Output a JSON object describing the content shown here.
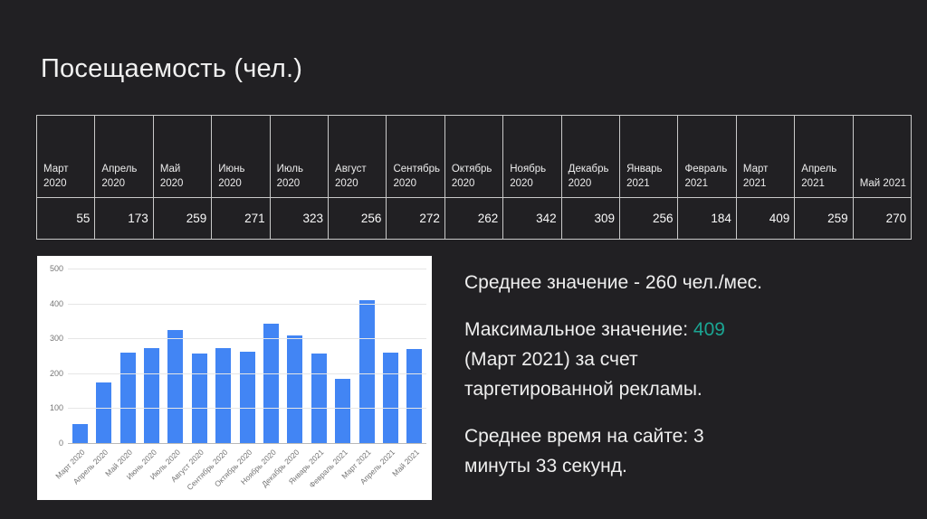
{
  "theme": {
    "background": "#212023",
    "text_primary": "#f1f1f1",
    "accent_teal": "#1ba593",
    "bar_blue": "#4285f4",
    "table_border": "#c9c9c9",
    "chart_background": "#ffffff",
    "chart_grid": "#e6e6e6",
    "chart_tick_text": "#757575"
  },
  "slide": {
    "title": "Посещаемость (чел.)"
  },
  "table": {
    "columns": [
      {
        "label_lines": [
          "Март",
          "2020"
        ],
        "value": "55"
      },
      {
        "label_lines": [
          "Апрель",
          "2020"
        ],
        "value": "173"
      },
      {
        "label_lines": [
          "Май",
          "2020"
        ],
        "value": "259"
      },
      {
        "label_lines": [
          "Июнь",
          "2020"
        ],
        "value": "271"
      },
      {
        "label_lines": [
          "Июль",
          "2020"
        ],
        "value": "323"
      },
      {
        "label_lines": [
          "Август",
          "2020"
        ],
        "value": "256"
      },
      {
        "label_lines": [
          "Сентябрь",
          "2020"
        ],
        "value": "272"
      },
      {
        "label_lines": [
          "Октябрь",
          "2020"
        ],
        "value": "262"
      },
      {
        "label_lines": [
          "Ноябрь",
          "2020"
        ],
        "value": "342"
      },
      {
        "label_lines": [
          "Декабрь",
          "2020"
        ],
        "value": "309"
      },
      {
        "label_lines": [
          "Январь",
          "2021"
        ],
        "value": "256"
      },
      {
        "label_lines": [
          "Февраль",
          "2021"
        ],
        "value": "184"
      },
      {
        "label_lines": [
          "Март",
          "2021"
        ],
        "value": "409"
      },
      {
        "label_lines": [
          "Апрель",
          "2021"
        ],
        "value": "259"
      },
      {
        "label_lines": [
          "Май 2021"
        ],
        "value": "270"
      }
    ]
  },
  "chart_data": {
    "type": "bar",
    "categories": [
      "Март 2020",
      "Апрель 2020",
      "Май 2020",
      "Июнь 2020",
      "Июль 2020",
      "Август 2020",
      "Сентябрь 2020",
      "Октябрь 2020",
      "Ноябрь 2020",
      "Декабрь 2020",
      "Январь 2021",
      "Февраль 2021",
      "Март 2021",
      "Апрель 2021",
      "Май 2021"
    ],
    "values": [
      55,
      173,
      259,
      271,
      323,
      256,
      272,
      262,
      342,
      309,
      256,
      184,
      409,
      259,
      270
    ],
    "title": "",
    "xlabel": "",
    "ylabel": "",
    "ylim": [
      0,
      500
    ],
    "yticks": [
      0,
      100,
      200,
      300,
      400,
      500
    ],
    "grid": true,
    "legend": "none",
    "bar_color": "#4285f4"
  },
  "notes": {
    "paragraphs": [
      {
        "lines": [
          [
            {
              "t": "Среднее значение - 260 чел./мес."
            }
          ]
        ]
      },
      {
        "lines": [
          [
            {
              "t": "Максимальное значение: "
            },
            {
              "t": "409",
              "accent": true
            }
          ],
          [
            {
              "t": "(Март 2021) за счет"
            }
          ],
          [
            {
              "t": "таргетированной рекламы."
            }
          ]
        ]
      },
      {
        "lines": [
          [
            {
              "t": "Среднее время на сайте: 3"
            }
          ],
          [
            {
              "t": "минуты 33 секунд."
            }
          ]
        ]
      }
    ]
  }
}
